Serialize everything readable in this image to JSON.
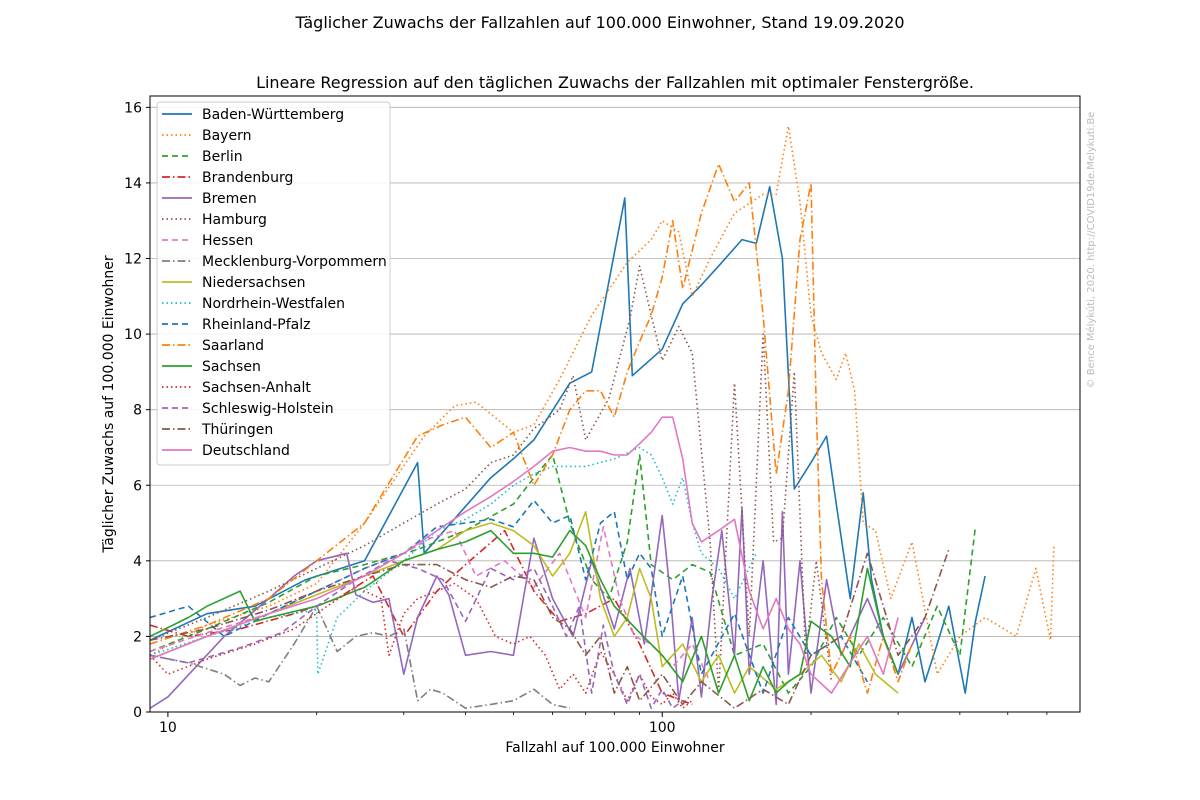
{
  "suptitle": "Täglicher Zuwachs der Fallzahlen auf 100.000 Einwohner, Stand 19.09.2020",
  "watermark": "© Bence Mélykúti, 2020. http://COVID19de.Melykuti.Be",
  "chart_data": {
    "type": "line",
    "title": "Lineare Regression auf den täglichen Zuwachs der Fallzahlen mit optimaler Fenstergröße.",
    "xlabel": "Fallzahl auf 100.000 Einwohner",
    "ylabel": "Täglicher Zuwachs auf 100.000 Einwohner",
    "xscale": "log",
    "xlim": [
      9.2,
      700
    ],
    "ylim": [
      0,
      16.3
    ],
    "xticks": [
      10,
      100
    ],
    "xtick_labels": [
      "10",
      "100"
    ],
    "yticks": [
      0,
      2,
      4,
      6,
      8,
      10,
      12,
      14,
      16
    ],
    "ytick_labels": [
      "0",
      "2",
      "4",
      "6",
      "8",
      "10",
      "12",
      "14",
      "16"
    ],
    "grid": "horizontal",
    "legend_position": "upper-left",
    "series": [
      {
        "name": "Baden-Württemberg",
        "color": "#1f77b4",
        "dash": "solid",
        "x": [
          9.2,
          12,
          15,
          19,
          25,
          32,
          33,
          45,
          50,
          55,
          65,
          72,
          84,
          87,
          100,
          110,
          120,
          130,
          145,
          155,
          165,
          175,
          185,
          200,
          215,
          225,
          240,
          255,
          265,
          280,
          300,
          320,
          340,
          360,
          380,
          410,
          430,
          450
        ],
        "y": [
          1.9,
          2.6,
          2.8,
          3.5,
          4.0,
          6.6,
          4.2,
          6.2,
          6.7,
          7.2,
          8.7,
          9.0,
          13.6,
          8.9,
          9.6,
          10.8,
          11.3,
          11.8,
          12.5,
          12.4,
          13.9,
          12.0,
          5.9,
          6.6,
          7.3,
          5.5,
          3.0,
          5.8,
          3.5,
          2.0,
          1.0,
          2.5,
          0.8,
          1.8,
          2.8,
          0.5,
          2.4,
          3.6
        ]
      },
      {
        "name": "Bayern",
        "color": "#ff7f0e",
        "dash": "dotted",
        "x": [
          9.2,
          12,
          16,
          20,
          25,
          33,
          38,
          42,
          50,
          55,
          62,
          72,
          85,
          95,
          100,
          108,
          115,
          125,
          140,
          160,
          170,
          180,
          190,
          200,
          210,
          225,
          235,
          245,
          255,
          270,
          290,
          320,
          360,
          400,
          450,
          520,
          570,
          610,
          620
        ],
        "y": [
          1.5,
          2.3,
          2.8,
          3.4,
          5.0,
          7.3,
          8.1,
          8.2,
          7.4,
          7.6,
          8.8,
          10.5,
          11.9,
          12.5,
          13.0,
          12.7,
          11.0,
          12.0,
          13.2,
          13.7,
          13.7,
          15.5,
          13.5,
          10.5,
          9.5,
          8.8,
          9.5,
          8.5,
          5.0,
          4.8,
          3.0,
          4.5,
          1.0,
          2.0,
          2.5,
          2.0,
          3.8,
          1.9,
          4.4
        ]
      },
      {
        "name": "Berlin",
        "color": "#2ca02c",
        "dash": "dashed",
        "x": [
          9.2,
          12,
          16,
          20,
          25,
          32,
          40,
          50,
          55,
          60,
          65,
          72,
          78,
          85,
          90,
          95,
          105,
          115,
          125,
          140,
          160,
          180,
          200,
          225,
          250,
          280,
          320,
          360,
          400,
          430
        ],
        "y": [
          1.6,
          2.2,
          2.9,
          3.6,
          3.9,
          4.3,
          4.8,
          5.5,
          6.2,
          6.8,
          5.0,
          3.5,
          3.0,
          4.5,
          6.8,
          3.9,
          3.5,
          3.9,
          3.7,
          1.5,
          1.8,
          0.5,
          1.2,
          2.5,
          1.5,
          2.5,
          1.2,
          2.8,
          1.5,
          4.9
        ]
      },
      {
        "name": "Brandenburg",
        "color": "#d62728",
        "dash": "dashdot",
        "x": [
          9.2,
          11,
          14,
          18,
          22,
          26,
          30,
          35,
          40,
          48,
          55,
          62,
          70,
          80,
          90,
          100,
          115
        ],
        "y": [
          2.3,
          2.0,
          2.2,
          2.6,
          3.0,
          3.6,
          2.0,
          3.2,
          3.9,
          4.8,
          3.2,
          2.4,
          2.6,
          3.0,
          1.8,
          0.5,
          0.2
        ]
      },
      {
        "name": "Bremen",
        "color": "#9467bd",
        "dash": "solid",
        "x": [
          9.2,
          10,
          13,
          16,
          18,
          20,
          23,
          24,
          26,
          28,
          30,
          32,
          35,
          37,
          40,
          45,
          50,
          55,
          60,
          66,
          72,
          80,
          86,
          92,
          100,
          104,
          108,
          115,
          120,
          126,
          132,
          140,
          145,
          150,
          160,
          170,
          175,
          180,
          190,
          200,
          215,
          230,
          260,
          300,
          340
        ],
        "y": [
          0.1,
          0.4,
          2.0,
          3.0,
          3.6,
          4.0,
          4.2,
          3.1,
          2.9,
          3.0,
          1.0,
          2.5,
          3.6,
          3.1,
          1.5,
          1.6,
          1.5,
          4.6,
          3.0,
          2.0,
          4.0,
          2.2,
          3.8,
          1.8,
          5.2,
          3.0,
          0.3,
          2.5,
          0.4,
          3.0,
          4.8,
          1.5,
          5.4,
          1.0,
          4.0,
          0.2,
          5.3,
          1.0,
          4.0,
          0.5,
          3.5,
          1.5,
          3.0,
          1.0,
          2.5
        ]
      },
      {
        "name": "Hamburg",
        "color": "#8c564b",
        "dash": "dotted",
        "x": [
          9.2,
          12,
          16,
          20,
          25,
          30,
          35,
          40,
          45,
          50,
          55,
          62,
          66,
          70,
          78,
          86,
          90,
          95,
          100,
          108,
          115,
          125,
          130,
          140,
          150,
          160,
          168,
          175,
          185,
          195,
          205,
          220
        ],
        "y": [
          1.9,
          2.5,
          3.2,
          3.8,
          4.4,
          5.0,
          5.5,
          5.9,
          6.6,
          6.8,
          7.5,
          8.0,
          8.9,
          7.2,
          8.3,
          10.4,
          11.8,
          10.5,
          9.3,
          10.2,
          9.5,
          4.5,
          0.5,
          8.7,
          2.0,
          10.0,
          4.5,
          4.6,
          9.0,
          1.5,
          4.0,
          0.8
        ]
      },
      {
        "name": "Hessen",
        "color": "#e377c2",
        "dash": "dashed",
        "x": [
          9.2,
          12,
          16,
          20,
          25,
          30,
          34,
          38,
          42,
          48,
          55,
          62,
          70,
          76,
          82,
          88,
          95,
          105,
          115,
          125
        ],
        "y": [
          1.6,
          2.1,
          2.6,
          3.2,
          3.8,
          4.2,
          4.6,
          4.8,
          3.6,
          4.0,
          3.3,
          4.2,
          2.5,
          4.9,
          3.0,
          2.0,
          1.8,
          1.2,
          1.8,
          0.8
        ]
      },
      {
        "name": "Mecklenburg-Vorpommern",
        "color": "#7f7f7f",
        "dash": "dashdot",
        "x": [
          9.2,
          11,
          13,
          14,
          15,
          16,
          18,
          20,
          22,
          24,
          26,
          28,
          30,
          32,
          34,
          36,
          40,
          45,
          50,
          55,
          60,
          65
        ],
        "y": [
          1.5,
          1.3,
          1.0,
          0.7,
          0.9,
          0.8,
          1.8,
          2.8,
          1.6,
          2.0,
          2.1,
          2.0,
          2.2,
          0.3,
          0.6,
          0.5,
          0.1,
          0.2,
          0.3,
          0.6,
          0.2,
          0.1
        ]
      },
      {
        "name": "Niedersachsen",
        "color": "#bcbd22",
        "dash": "solid",
        "x": [
          9.2,
          12,
          16,
          20,
          25,
          30,
          35,
          40,
          45,
          50,
          55,
          60,
          65,
          70,
          75,
          80,
          85,
          90,
          95,
          100,
          110,
          120,
          130,
          140,
          150,
          170,
          190,
          210,
          230,
          250,
          270,
          300
        ],
        "y": [
          1.4,
          2.0,
          2.6,
          3.1,
          3.6,
          4.0,
          4.3,
          4.8,
          5.0,
          4.8,
          4.4,
          3.6,
          4.2,
          5.3,
          3.0,
          2.0,
          2.5,
          3.8,
          3.0,
          1.2,
          1.8,
          0.8,
          1.5,
          0.5,
          1.2,
          0.6,
          1.0,
          1.5,
          0.8,
          1.8,
          1.0,
          0.5
        ]
      },
      {
        "name": "Nordrhein-Westfalen",
        "color": "#17becf",
        "dash": "dotted",
        "x": [
          9.2,
          12,
          16,
          20,
          20.1,
          22,
          25,
          30,
          35,
          40,
          45,
          50,
          55,
          60,
          65,
          70,
          80,
          90,
          95,
          100,
          105,
          110,
          115,
          120,
          130,
          140,
          155
        ],
        "y": [
          1.5,
          2.0,
          2.5,
          2.7,
          1.0,
          2.5,
          3.2,
          4.0,
          4.8,
          5.1,
          5.5,
          6.0,
          6.3,
          6.5,
          6.5,
          6.5,
          6.7,
          7.0,
          6.8,
          6.2,
          5.5,
          6.2,
          5.0,
          4.2,
          3.8,
          3.0,
          4.2
        ]
      },
      {
        "name": "Rheinland-Pfalz",
        "color": "#1f77b4",
        "dash": "dashed",
        "x": [
          9.2,
          11,
          13,
          16,
          20,
          25,
          30,
          35,
          40,
          45,
          50,
          55,
          60,
          65,
          70,
          75,
          80,
          85,
          90,
          95,
          100,
          110,
          120,
          140,
          160,
          180,
          200,
          230,
          260
        ],
        "y": [
          2.5,
          2.8,
          2.0,
          2.6,
          3.2,
          3.8,
          4.2,
          4.9,
          5.0,
          5.1,
          4.9,
          5.6,
          5.0,
          5.2,
          3.5,
          5.0,
          5.3,
          3.5,
          4.2,
          3.8,
          2.0,
          3.6,
          1.0,
          2.6,
          0.5,
          2.5,
          1.5,
          2.0,
          0.8
        ]
      },
      {
        "name": "Saarland",
        "color": "#ff7f0e",
        "dash": "dashdot",
        "x": [
          9.2,
          12,
          16,
          20,
          25,
          32,
          36,
          40,
          45,
          50,
          55,
          60,
          65,
          70,
          75,
          80,
          85,
          90,
          95,
          100,
          105,
          110,
          120,
          130,
          140,
          150,
          160,
          170,
          180,
          190,
          200,
          205,
          210,
          220,
          240,
          260,
          280,
          300,
          320
        ],
        "y": [
          1.8,
          2.3,
          3.0,
          4.0,
          5.0,
          7.3,
          7.6,
          7.8,
          7.0,
          7.4,
          6.0,
          6.8,
          8.0,
          8.5,
          8.5,
          7.8,
          9.0,
          9.8,
          10.5,
          11.5,
          13.0,
          11.2,
          13.2,
          14.5,
          13.5,
          14.0,
          10.5,
          6.3,
          8.5,
          12.5,
          14.0,
          8.0,
          3.5,
          1.0,
          2.0,
          0.5,
          2.0,
          0.8,
          1.8
        ]
      },
      {
        "name": "Sachsen",
        "color": "#2ca02c",
        "dash": "solid",
        "x": [
          9.2,
          11,
          12,
          14,
          15,
          16,
          20,
          25,
          30,
          35,
          40,
          45,
          50,
          55,
          60,
          65,
          70,
          75,
          80,
          90,
          100,
          110,
          120,
          130,
          140,
          150,
          160,
          170,
          180,
          190,
          200,
          220,
          240,
          260,
          280,
          300
        ],
        "y": [
          2.0,
          2.5,
          2.8,
          3.2,
          2.4,
          2.5,
          2.8,
          3.3,
          4.0,
          4.3,
          4.5,
          4.8,
          4.2,
          4.2,
          4.1,
          4.8,
          4.4,
          3.5,
          2.8,
          2.1,
          1.5,
          0.8,
          2.0,
          0.5,
          1.5,
          0.3,
          1.2,
          0.5,
          0.8,
          1.0,
          2.4,
          2.0,
          1.2,
          3.8,
          2.0,
          1.0
        ]
      },
      {
        "name": "Sachsen-Anhalt",
        "color": "#d62728",
        "dash": "dotted",
        "x": [
          9.2,
          10,
          12,
          15,
          18,
          21,
          24,
          27,
          28,
          30,
          32,
          35,
          38,
          42,
          46,
          50,
          54,
          58,
          62,
          66,
          70,
          75,
          80,
          85,
          90,
          95,
          100,
          105,
          110,
          115
        ],
        "y": [
          1.5,
          1.0,
          1.4,
          1.8,
          2.2,
          2.8,
          3.3,
          3.0,
          1.5,
          2.6,
          3.0,
          3.2,
          3.4,
          3.0,
          2.0,
          1.8,
          2.0,
          1.5,
          0.6,
          1.0,
          0.5,
          1.6,
          1.0,
          0.3,
          1.0,
          0.4,
          0.2,
          0.5,
          0.1,
          0.3
        ]
      },
      {
        "name": "Schleswig-Holstein",
        "color": "#9467bd",
        "dash": "dashed",
        "x": [
          9.2,
          11,
          14,
          17,
          20,
          24,
          28,
          32,
          36,
          40,
          45,
          50,
          55,
          60,
          64,
          68,
          72,
          76,
          80,
          85,
          90,
          95,
          100,
          105,
          110
        ],
        "y": [
          1.5,
          1.3,
          1.7,
          2.1,
          2.8,
          3.5,
          4.0,
          3.8,
          3.5,
          2.4,
          3.8,
          3.5,
          3.8,
          2.8,
          2.0,
          2.8,
          0.5,
          2.3,
          1.0,
          0.2,
          1.0,
          0.1,
          0.6,
          0.1,
          0.3
        ]
      },
      {
        "name": "Thüringen",
        "color": "#8c564b",
        "dash": "dashdot",
        "x": [
          9.2,
          12,
          16,
          20,
          25,
          30,
          35,
          40,
          45,
          50,
          55,
          60,
          65,
          70,
          75,
          80,
          85,
          90,
          100,
          110,
          120,
          140,
          160,
          180,
          200,
          230,
          260,
          300,
          340,
          380
        ],
        "y": [
          1.9,
          2.2,
          2.7,
          3.2,
          3.6,
          3.9,
          3.9,
          3.5,
          3.3,
          3.6,
          3.5,
          2.5,
          2.2,
          1.5,
          2.0,
          0.5,
          1.2,
          0.3,
          1.0,
          0.2,
          0.8,
          0.1,
          0.6,
          0.2,
          1.5,
          2.0,
          4.2,
          1.5,
          2.5,
          4.3
        ]
      },
      {
        "name": "Deutschland",
        "color": "#e377c2",
        "dash": "solid",
        "x": [
          9.2,
          12,
          16,
          20,
          25,
          30,
          35,
          40,
          45,
          50,
          55,
          60,
          65,
          70,
          75,
          80,
          85,
          90,
          95,
          100,
          105,
          110,
          115,
          120,
          130,
          140,
          150,
          160,
          170,
          180,
          190,
          200,
          220,
          240,
          260,
          280,
          300
        ],
        "y": [
          1.4,
          2.0,
          2.6,
          3.0,
          3.6,
          4.2,
          4.8,
          5.3,
          5.7,
          6.1,
          6.5,
          6.9,
          7.0,
          6.9,
          6.9,
          6.8,
          6.8,
          7.1,
          7.4,
          7.8,
          7.8,
          6.7,
          5.0,
          4.5,
          4.8,
          5.1,
          3.2,
          2.2,
          3.0,
          2.2,
          1.8,
          1.0,
          0.5,
          1.3,
          2.0,
          1.0,
          2.5
        ]
      }
    ]
  }
}
